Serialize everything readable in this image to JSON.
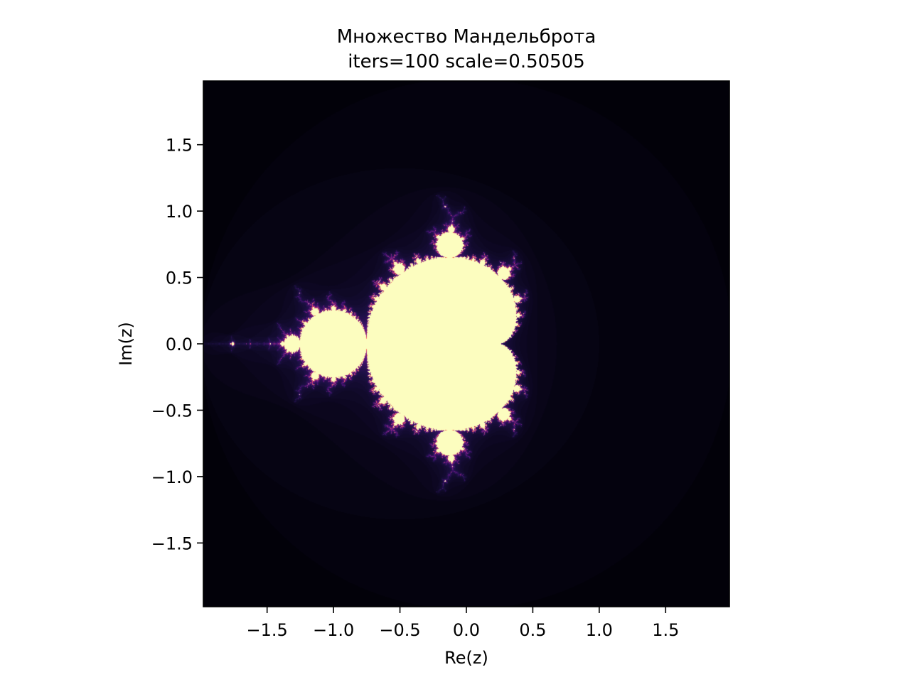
{
  "chart_data": {
    "type": "heatmap",
    "title": "Множество Мандельброта",
    "subtitle": "iters=100 scale=0.50505",
    "xlabel": "Re(z)",
    "ylabel": "Im(z)",
    "xlim": [
      -1.98,
      1.98
    ],
    "ylim": [
      -1.98,
      1.98
    ],
    "xticks": [
      -1.5,
      -1.0,
      -0.5,
      0.0,
      0.5,
      1.0,
      1.5
    ],
    "xtick_labels": [
      "−1.5",
      "−1.0",
      "−0.5",
      "0.0",
      "0.5",
      "1.0",
      "1.5"
    ],
    "yticks": [
      1.5,
      1.0,
      0.5,
      0.0,
      -0.5,
      -1.0,
      -1.5
    ],
    "ytick_labels": [
      "1.5",
      "1.0",
      "0.5",
      "0.0",
      "−0.5",
      "−1.0",
      "−1.5"
    ],
    "iterations": 100,
    "scale": 0.50505,
    "colormap": "magma",
    "set_color": "#fcfdbf",
    "background_color": "#000004",
    "grid": false
  }
}
